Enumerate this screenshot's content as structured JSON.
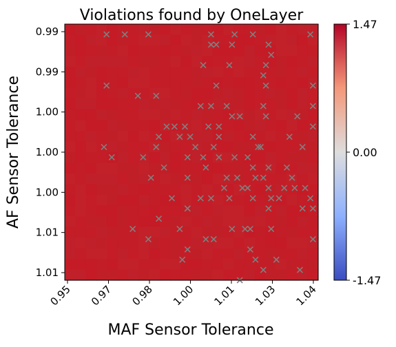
{
  "chart_data": {
    "type": "heatmap",
    "title": "Violations found by OneLayer",
    "xlabel": "MAF Sensor Tolerance",
    "ylabel": "AF Sensor Tolerance",
    "x_ticks": [
      "0.95",
      "0.97",
      "0.98",
      "1.00",
      "1.01",
      "1.03",
      "1.04"
    ],
    "y_ticks": [
      "0.99",
      "0.99",
      "1.00",
      "1.00",
      "1.00",
      "1.01",
      "1.01"
    ],
    "xlim": [
      0.949,
      1.046
    ],
    "ylim": [
      0.988,
      1.013
    ],
    "colorbar": {
      "ticks": [
        "1.47",
        "0.00",
        "-1.47"
      ],
      "range": [
        -1.47,
        1.47
      ],
      "colormap": [
        "#3b4cc0",
        "#8db0fe",
        "#dddddd",
        "#f4987a",
        "#b40426"
      ]
    },
    "cell_color_base": "#c31d27",
    "marker": {
      "symbol": "x",
      "color": "#808080"
    },
    "violations": [
      [
        0.965,
        0.989
      ],
      [
        0.972,
        0.989
      ],
      [
        0.981,
        0.989
      ],
      [
        1.005,
        0.989
      ],
      [
        1.014,
        0.989
      ],
      [
        1.021,
        0.989
      ],
      [
        1.043,
        0.989
      ],
      [
        1.005,
        0.99
      ],
      [
        1.007,
        0.99
      ],
      [
        1.013,
        0.99
      ],
      [
        1.027,
        0.99
      ],
      [
        1.028,
        0.991
      ],
      [
        1.002,
        0.992
      ],
      [
        1.012,
        0.992
      ],
      [
        1.026,
        0.992
      ],
      [
        1.025,
        0.993
      ],
      [
        1.026,
        0.994
      ],
      [
        1.044,
        0.994
      ],
      [
        0.965,
        0.994
      ],
      [
        0.977,
        0.995
      ],
      [
        0.984,
        0.995
      ],
      [
        1.007,
        0.994
      ],
      [
        1.005,
        0.996
      ],
      [
        1.011,
        0.996
      ],
      [
        1.013,
        0.997
      ],
      [
        1.016,
        0.997
      ],
      [
        1.025,
        0.996
      ],
      [
        1.026,
        0.997
      ],
      [
        1.038,
        0.997
      ],
      [
        0.988,
        0.998
      ],
      [
        0.991,
        0.998
      ],
      [
        0.995,
        0.998
      ],
      [
        1.001,
        0.996
      ],
      [
        1.044,
        0.996
      ],
      [
        1.044,
        0.998
      ],
      [
        0.985,
        0.999
      ],
      [
        0.993,
        0.999
      ],
      [
        0.997,
        0.999
      ],
      [
        1.004,
        0.998
      ],
      [
        1.008,
        0.998
      ],
      [
        1.008,
        0.999
      ],
      [
        1.021,
        0.999
      ],
      [
        1.023,
        1.0
      ],
      [
        1.024,
        1.0
      ],
      [
        1.035,
        0.999
      ],
      [
        1.04,
        1.0
      ],
      [
        0.964,
        1.0
      ],
      [
        0.967,
        1.001
      ],
      [
        0.979,
        1.001
      ],
      [
        0.984,
        1.0
      ],
      [
        0.987,
        1.002
      ],
      [
        0.996,
        1.001
      ],
      [
        0.999,
        1.0
      ],
      [
        1.002,
        1.001
      ],
      [
        1.006,
        1.0
      ],
      [
        1.008,
        1.001
      ],
      [
        1.014,
        1.001
      ],
      [
        1.019,
        1.001
      ],
      [
        1.021,
        1.002
      ],
      [
        1.027,
        1.002
      ],
      [
        1.034,
        1.002
      ],
      [
        1.036,
        1.003
      ],
      [
        0.982,
        1.003
      ],
      [
        0.99,
        1.005
      ],
      [
        0.996,
        1.003
      ],
      [
        1.003,
        1.002
      ],
      [
        1.011,
        1.003
      ],
      [
        1.015,
        1.003
      ],
      [
        1.017,
        1.004
      ],
      [
        1.019,
        1.004
      ],
      [
        1.022,
        1.003
      ],
      [
        1.025,
        1.003
      ],
      [
        1.027,
        1.004
      ],
      [
        1.028,
        1.005
      ],
      [
        1.033,
        1.004
      ],
      [
        1.041,
        1.004
      ],
      [
        1.043,
        1.005
      ],
      [
        0.996,
        1.006
      ],
      [
        1.001,
        1.005
      ],
      [
        1.005,
        1.005
      ],
      [
        1.01,
        1.004
      ],
      [
        1.012,
        1.005
      ],
      [
        1.021,
        1.005
      ],
      [
        1.027,
        1.006
      ],
      [
        1.031,
        1.005
      ],
      [
        1.037,
        1.004
      ],
      [
        1.04,
        1.006
      ],
      [
        1.044,
        1.006
      ],
      [
        0.975,
        1.008
      ],
      [
        0.985,
        1.007
      ],
      [
        0.993,
        1.008
      ],
      [
        0.996,
        1.006
      ],
      [
        1.003,
        1.009
      ],
      [
        1.006,
        1.009
      ],
      [
        1.013,
        1.008
      ],
      [
        1.018,
        1.008
      ],
      [
        1.02,
        1.008
      ],
      [
        1.028,
        1.008
      ],
      [
        1.044,
        1.009
      ],
      [
        0.981,
        1.009
      ],
      [
        0.996,
        1.01
      ],
      [
        1.02,
        1.01
      ],
      [
        1.022,
        1.011
      ],
      [
        1.03,
        1.011
      ],
      [
        1.039,
        1.012
      ],
      [
        0.994,
        1.011
      ],
      [
        1.025,
        1.012
      ],
      [
        1.016,
        1.013
      ]
    ]
  }
}
